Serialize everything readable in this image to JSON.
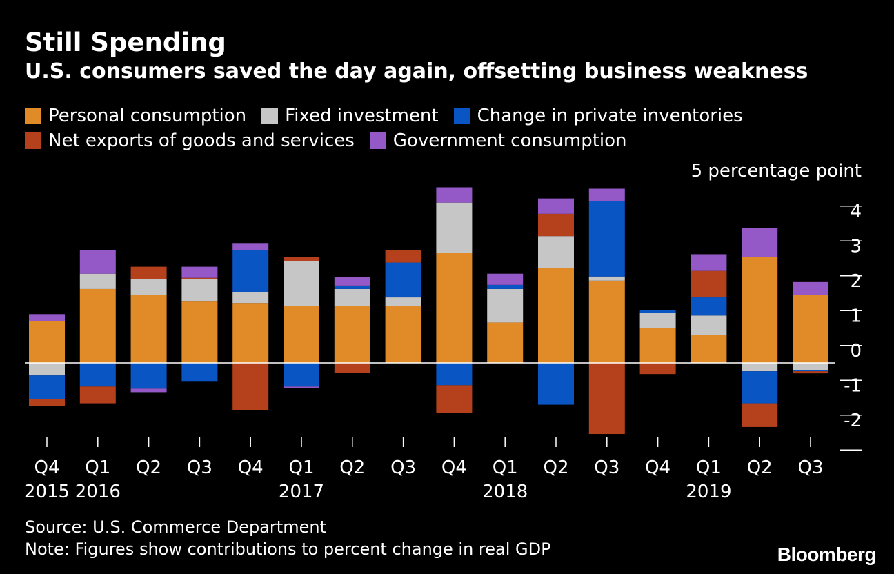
{
  "title": "Still Spending",
  "subtitle": "U.S. consumers saved the day again, offsetting business weakness",
  "source": "Source: U.S. Commerce Department",
  "note": "Note: Figures show contributions to percent change in real GDP",
  "brand": "Bloomberg",
  "chart_data": {
    "type": "bar",
    "stacked": true,
    "unit_label": "5 percentage point",
    "ylim": [
      -2.1,
      5
    ],
    "yticks": [
      "4",
      "3",
      "2",
      "1",
      "0",
      "-1",
      "-2"
    ],
    "ytick_values": [
      4,
      3,
      2,
      1,
      0,
      -1,
      -2
    ],
    "categories": [
      "Q4",
      "Q1",
      "Q2",
      "Q3",
      "Q4",
      "Q1",
      "Q2",
      "Q3",
      "Q4",
      "Q1",
      "Q2",
      "Q3",
      "Q4",
      "Q1",
      "Q2",
      "Q3"
    ],
    "year_labels": [
      "2015",
      "2016",
      "",
      "",
      "",
      "2017",
      "",
      "",
      "",
      "2018",
      "",
      "",
      "",
      "2019",
      "",
      ""
    ],
    "legend_position": "top-left",
    "series": [
      {
        "name": "Personal consumption",
        "color": "#e08a28",
        "values": [
          1.2,
          2.12,
          1.96,
          1.76,
          1.72,
          1.64,
          1.64,
          1.64,
          3.16,
          1.16,
          2.72,
          2.36,
          1.0,
          0.8,
          3.04,
          1.96
        ]
      },
      {
        "name": "Fixed investment",
        "color": "#c6c6c6",
        "values": [
          -0.36,
          0.44,
          0.44,
          0.64,
          0.32,
          1.28,
          0.48,
          0.24,
          1.44,
          0.96,
          0.92,
          0.12,
          0.44,
          0.56,
          -0.24,
          -0.2
        ]
      },
      {
        "name": "Change in private inventories",
        "color": "#0a55c4",
        "values": [
          -0.68,
          -0.68,
          -0.74,
          -0.52,
          1.2,
          -0.68,
          0.1,
          1.0,
          -0.64,
          0.12,
          -1.2,
          2.16,
          0.08,
          0.52,
          -0.92,
          -0.04
        ]
      },
      {
        "name": "Net exports of goods and services",
        "color": "#b5411c",
        "values": [
          -0.2,
          -0.48,
          0.36,
          0.04,
          -1.36,
          0.12,
          -0.28,
          0.36,
          -0.8,
          0.0,
          0.64,
          -2.04,
          -0.32,
          0.76,
          -0.68,
          -0.06
        ]
      },
      {
        "name": "Government consumption",
        "color": "#9459c7",
        "values": [
          0.2,
          0.68,
          -0.1,
          0.32,
          0.2,
          -0.04,
          0.24,
          0.0,
          0.44,
          0.32,
          0.44,
          0.36,
          0.0,
          0.48,
          0.84,
          0.36
        ]
      }
    ],
    "legend_rows": [
      [
        0,
        1,
        2
      ],
      [
        3,
        4
      ]
    ]
  }
}
